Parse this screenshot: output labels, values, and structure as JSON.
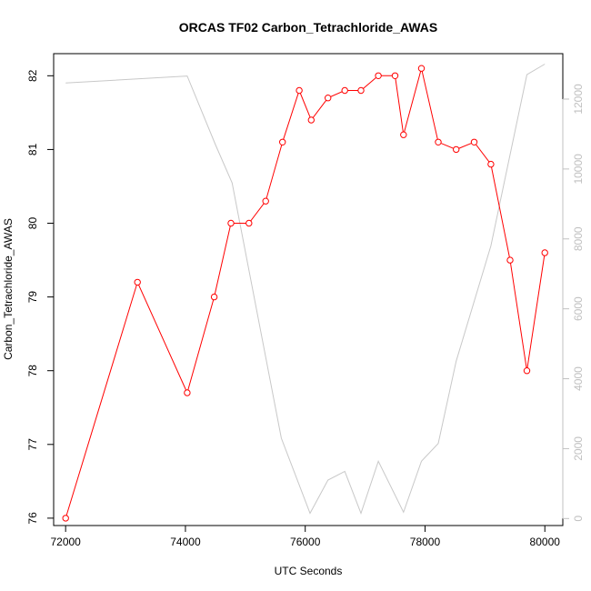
{
  "chart_data": {
    "type": "line",
    "title": "ORCAS TF02 Carbon_Tetrachloride_AWAS",
    "xlabel": "UTC Seconds",
    "ylabel": "Carbon_Tetrachloride_AWAS",
    "xlim": [
      71800,
      80300
    ],
    "ylim": [
      75.9,
      82.3
    ],
    "y2lim": [
      -200,
      13300
    ],
    "x_ticks": [
      72000,
      74000,
      76000,
      78000,
      80000
    ],
    "y_ticks": [
      76,
      77,
      78,
      79,
      80,
      81,
      82
    ],
    "y2_ticks": [
      0,
      2000,
      4000,
      6000,
      8000,
      10000,
      12000
    ],
    "grid": false,
    "colors": {
      "primary": "#ff0000",
      "secondary": "#c8c8c8",
      "secondary_axis": "#c0c0c0"
    },
    "series": [
      {
        "axis": "left",
        "style": "line-with-circle-markers",
        "x": [
          72000,
          73200,
          74030,
          74480,
          74760,
          75060,
          75340,
          75620,
          75900,
          76100,
          76380,
          76660,
          76930,
          77220,
          77500,
          77640,
          77940,
          78220,
          78520,
          78820,
          79100,
          79420,
          79700,
          80000
        ],
        "values": [
          76.0,
          79.2,
          77.7,
          79.0,
          80.0,
          80.0,
          80.3,
          81.1,
          81.8,
          81.4,
          81.7,
          81.8,
          81.8,
          82.0,
          82.0,
          81.2,
          82.1,
          81.1,
          81.0,
          81.1,
          80.8,
          79.5,
          78.0,
          79.6
        ]
      },
      {
        "axis": "right",
        "style": "line",
        "x": [
          72000,
          74030,
          74500,
          74780,
          75600,
          76080,
          76380,
          76660,
          76930,
          77220,
          77640,
          77940,
          78220,
          78520,
          79100,
          79700,
          80000
        ],
        "values": [
          12460,
          12660,
          10700,
          9600,
          2300,
          150,
          1100,
          1350,
          150,
          1640,
          180,
          1640,
          2150,
          4500,
          7800,
          12700,
          13000
        ]
      }
    ]
  }
}
